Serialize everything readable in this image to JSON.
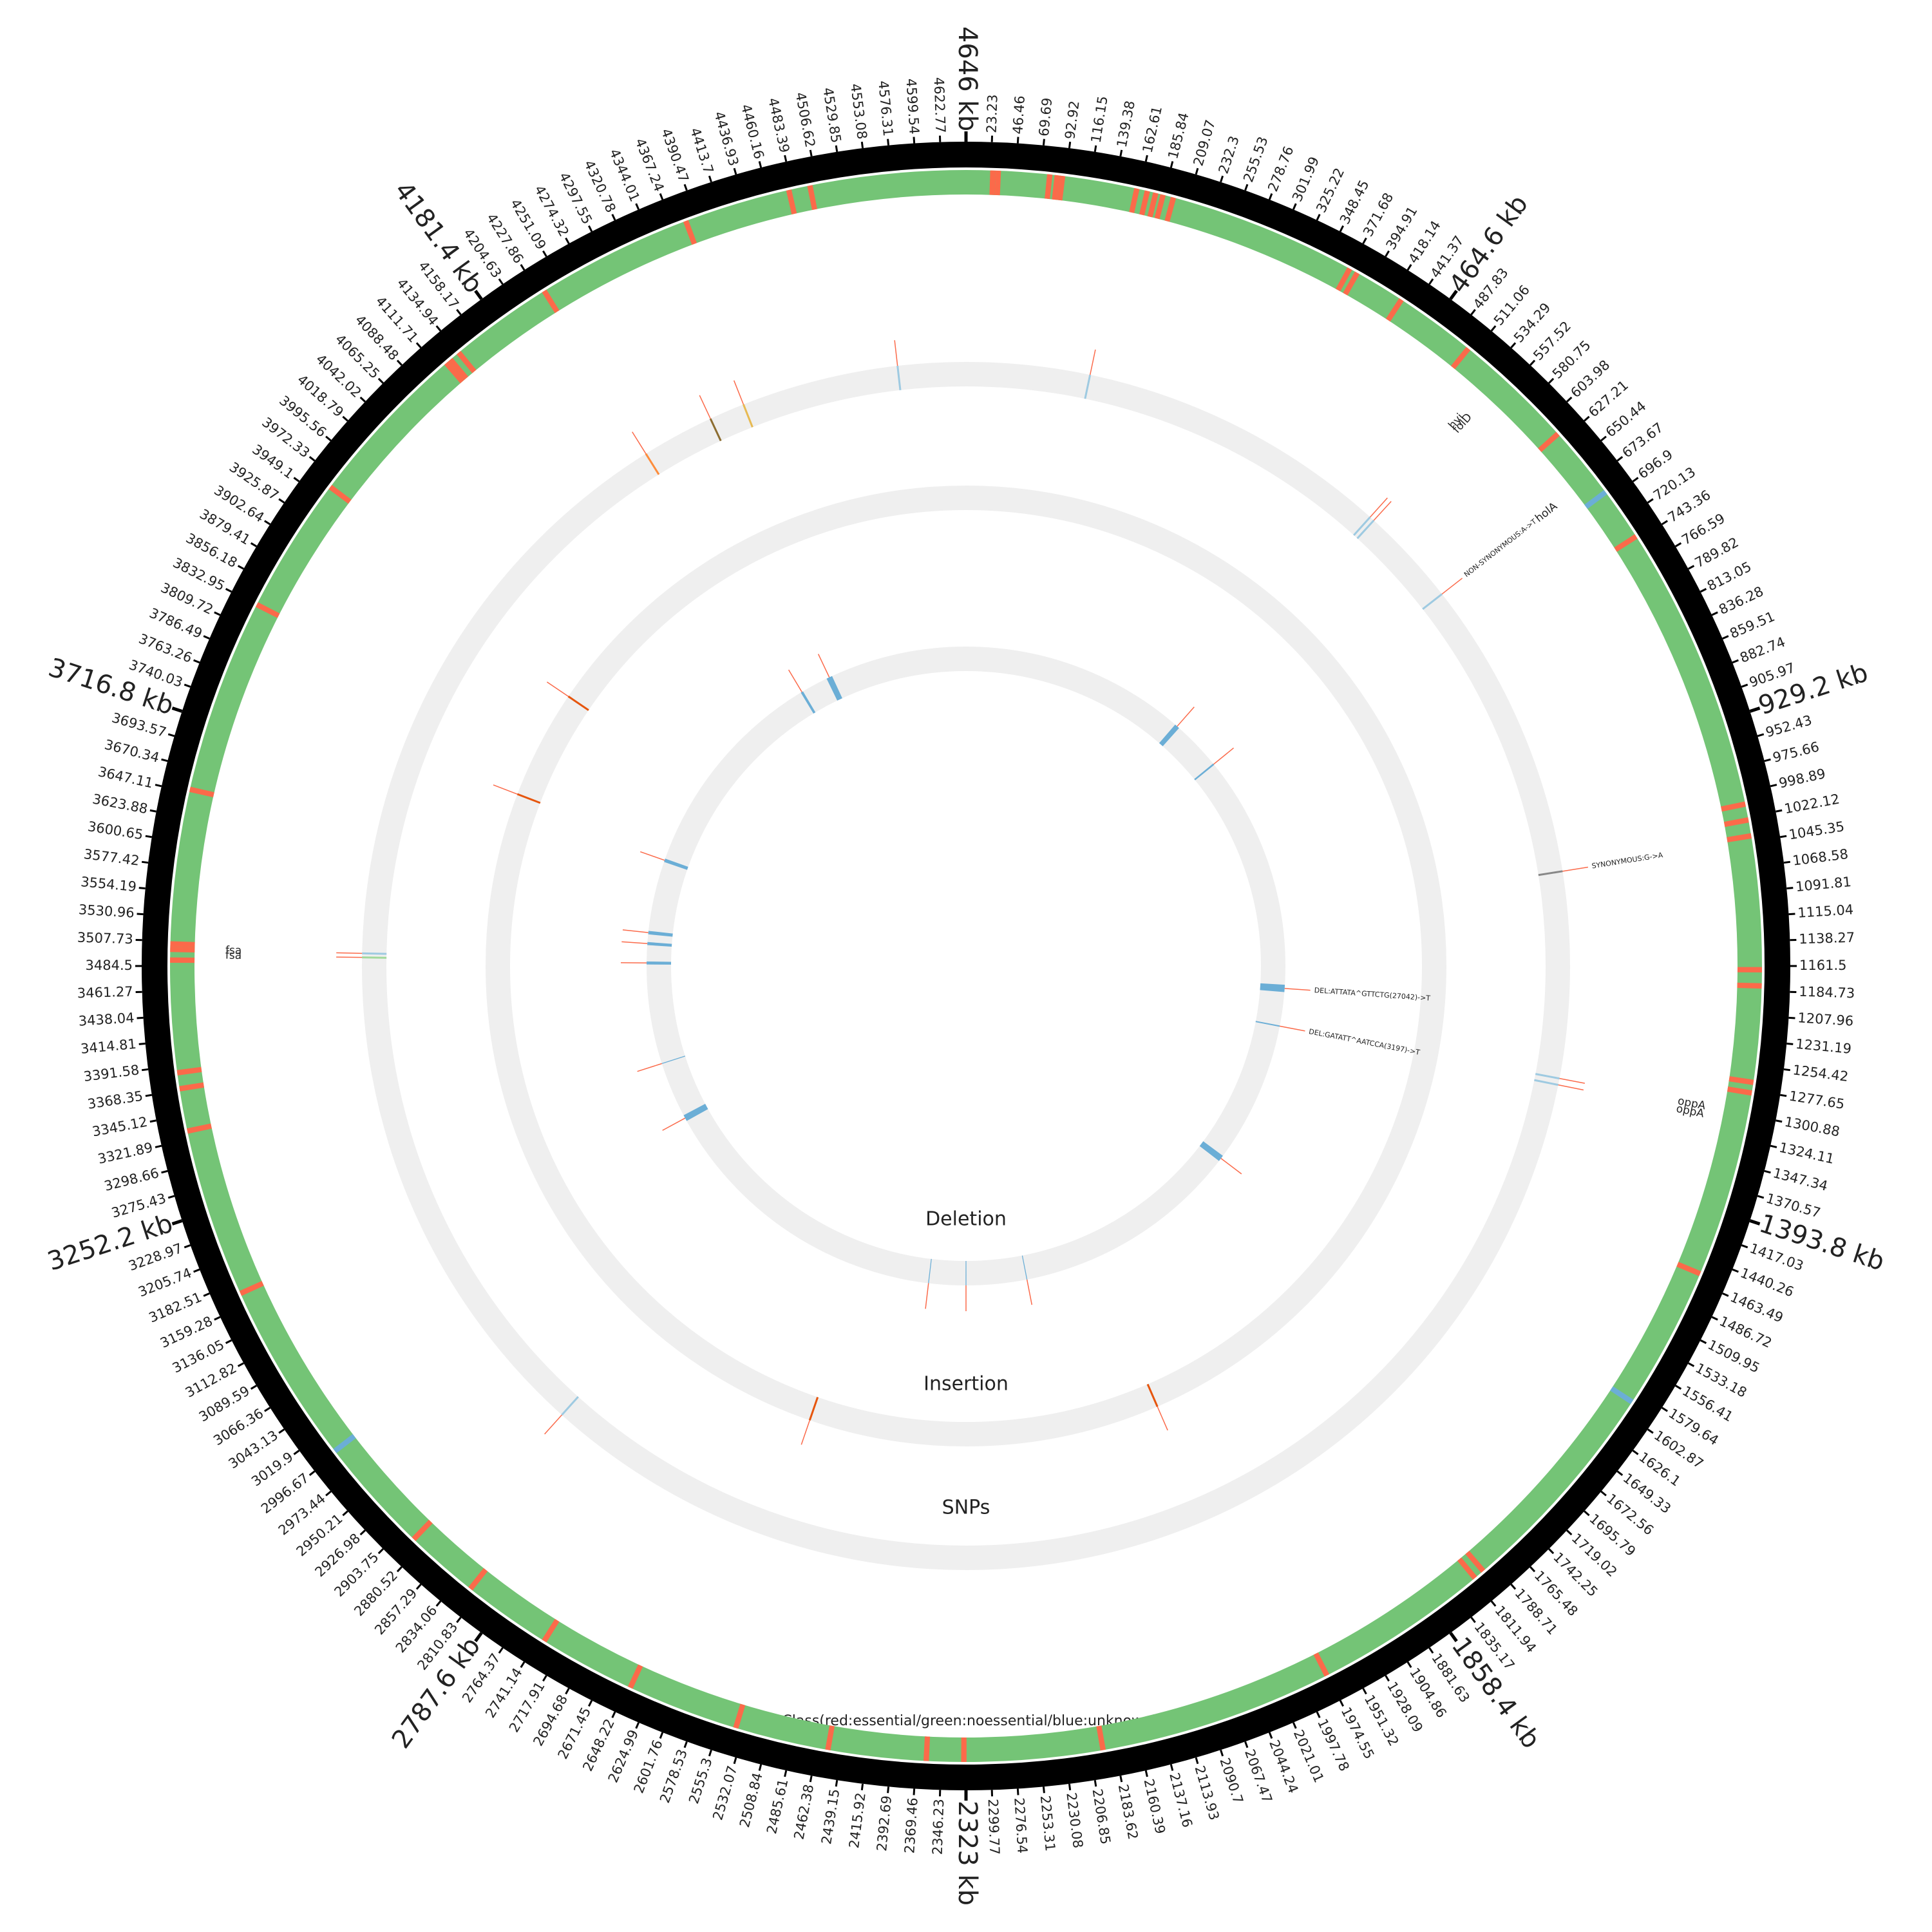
{
  "chart_data": {
    "type": "circular",
    "xlim": [
      0,
      4646
    ],
    "major_ticks": [
      {
        "value": 464.6,
        "label": "464.6 kb"
      },
      {
        "value": 929.2,
        "label": "929.2 kb"
      },
      {
        "value": 1393.8,
        "label": "1393.8 kb"
      },
      {
        "value": 1858.4,
        "label": "1858.4 kb"
      },
      {
        "value": 2323,
        "label": "2323 kb"
      },
      {
        "value": 2787.6,
        "label": "2787.6 kb"
      },
      {
        "value": 3252.2,
        "label": "3252.2 kb"
      },
      {
        "value": 3716.8,
        "label": "3716.8 kb"
      },
      {
        "value": 4181.4,
        "label": "4181.4 kb"
      },
      {
        "value": 4646,
        "label": "4646 kb"
      }
    ],
    "xticks": [
      23.23,
      46.46,
      69.69,
      92.92,
      116.15,
      139.38,
      162.61,
      185.84,
      209.07,
      232.3,
      255.53,
      278.76,
      301.99,
      325.22,
      348.45,
      371.68,
      394.91,
      418.14,
      441.37,
      487.83,
      511.06,
      534.29,
      557.52,
      580.75,
      603.98,
      627.21,
      650.44,
      673.67,
      696.9,
      720.13,
      743.36,
      766.59,
      789.82,
      813.05,
      836.28,
      859.51,
      882.74,
      905.97,
      952.43,
      975.66,
      998.89,
      1022.12,
      1045.35,
      1068.58,
      1091.81,
      1115.04,
      1138.27,
      1161.5,
      1184.73,
      1207.96,
      1231.19,
      1254.42,
      1277.65,
      1300.88,
      1324.11,
      1347.34,
      1370.57,
      1417.03,
      1440.26,
      1463.49,
      1486.72,
      1509.95,
      1533.18,
      1556.41,
      1579.64,
      1602.87,
      1626.1,
      1649.33,
      1672.56,
      1695.79,
      1719.02,
      1742.25,
      1765.48,
      1788.71,
      1811.94,
      1835.17,
      1881.63,
      1904.86,
      1928.09,
      1951.32,
      1974.55,
      1997.78,
      2021.01,
      2044.24,
      2067.47,
      2090.7,
      2113.93,
      2137.16,
      2160.39,
      2183.62,
      2206.85,
      2230.08,
      2253.31,
      2276.54,
      2299.77,
      2346.23,
      2369.46,
      2392.69,
      2415.92,
      2439.15,
      2462.38,
      2485.61,
      2508.84,
      2532.07,
      2555.3,
      2578.53,
      2601.76,
      2624.99,
      2648.22,
      2671.45,
      2694.68,
      2717.91,
      2741.14,
      2764.37,
      2810.83,
      2834.06,
      2857.29,
      2880.52,
      2903.75,
      2926.98,
      2950.21,
      2973.44,
      2996.67,
      3019.9,
      3043.13,
      3066.36,
      3089.59,
      3112.82,
      3136.05,
      3159.28,
      3182.51,
      3205.74,
      3228.97,
      3275.43,
      3298.66,
      3321.89,
      3345.12,
      3368.35,
      3391.58,
      3414.81,
      3438.04,
      3461.27,
      3484.5,
      3507.73,
      3530.96,
      3554.19,
      3577.42,
      3600.65,
      3623.88,
      3647.11,
      3670.34,
      3693.57,
      3740.03,
      3763.26,
      3786.49,
      3809.72,
      3832.95,
      3856.18,
      3879.41,
      3902.64,
      3925.87,
      3949.1,
      3972.33,
      3995.56,
      4018.79,
      4042.02,
      4065.25,
      4088.48,
      4111.71,
      4134.94,
      4158.17,
      4204.63,
      4227.86,
      4251.09,
      4274.32,
      4297.55,
      4320.78,
      4344.01,
      4367.24,
      4390.47,
      4413.7,
      4436.93,
      4460.16,
      4483.39,
      4506.62,
      4529.85,
      4553.08,
      4576.31,
      4599.54,
      4622.77
    ],
    "class_track": {
      "label": "Class(red:essential/green:noessential/blue:unknown)",
      "color": "#74c476",
      "essential": {
        "color": "#fb6a4a",
        "positions": [
          25,
          30,
          78,
          85,
          90,
          160,
          170,
          178,
          185,
          195,
          372,
          380,
          428,
          505,
          620,
          740,
          1010,
          1025,
          1040,
          1165,
          1180,
          1270,
          1280,
          1455,
          1800,
          1810,
          1975,
          2195,
          2325,
          2360,
          2452,
          2540,
          2645,
          2736,
          2820,
          2890,
          3171,
          3330,
          3370,
          3385,
          3490,
          3500,
          3505,
          3650,
          3833,
          3962,
          4120,
          4125,
          4135,
          4233,
          4380,
          4480,
          4500
        ]
      },
      "unknown": {
        "color": "#6baed6",
        "positions": [
          690,
          1590,
          3000
        ]
      }
    },
    "tracks": [
      {
        "name": "SNPs",
        "color": "#9ecae1",
        "label_color": "#fb6a4a",
        "features": [
          {
            "position": 4562
          },
          {
            "position": 153
          },
          {
            "position": 542,
            "gene": "hyi"
          },
          {
            "position": 548,
            "gene": "folD"
          },
          {
            "position": 671,
            "label": "NON-SYNONYMOUS:A->T",
            "gene": "holA"
          },
          {
            "position": 1045,
            "label": "SYNONYMOUS:G->A",
            "color": "#888888"
          },
          {
            "position": 1300,
            "gene": "oppA"
          },
          {
            "position": 1308,
            "gene": "oppA"
          },
          {
            "position": 2865
          },
          {
            "position": 3495,
            "gene": "fsa",
            "color": "#a1d99b"
          },
          {
            "position": 3500,
            "gene": "fsa"
          },
          {
            "position": 4233,
            "color": "#fd8d3c"
          },
          {
            "position": 4323,
            "color": "#8c6d31"
          },
          {
            "position": 4367,
            "color": "#e7ba52"
          }
        ]
      },
      {
        "name": "Insertion",
        "color": "#e6550d",
        "label_color": "#fb6a4a",
        "features": [
          {
            "position": 3925
          },
          {
            "position": 3755
          },
          {
            "position": 2568
          },
          {
            "position": 2020
          }
        ]
      },
      {
        "name": "Deletion",
        "color": "#6baed6",
        "label_color": "#fb6a4a",
        "features": [
          {
            "start": 4244,
            "end": 4250
          },
          {
            "start": 4312,
            "end": 4326
          },
          {
            "start": 528,
            "end": 540
          },
          {
            "start": 654,
            "end": 658
          },
          {
            "start": 1205,
            "end": 1222,
            "label": "DEL:ATTATA^GTTCTG(27042)->T"
          },
          {
            "start": 1300,
            "end": 1303,
            "label": "DEL:GATATT^AATCCA(3197)->T"
          },
          {
            "start": 1632,
            "end": 1647
          },
          {
            "start": 2180,
            "end": 2182
          },
          {
            "start": 2322,
            "end": 2324
          },
          {
            "start": 2409,
            "end": 2411
          },
          {
            "start": 3110,
            "end": 3125
          },
          {
            "start": 3254,
            "end": 3256
          },
          {
            "start": 3488,
            "end": 3495
          },
          {
            "start": 3533,
            "end": 3540
          },
          {
            "start": 3558,
            "end": 3566
          },
          {
            "start": 3730,
            "end": 3738
          }
        ]
      }
    ]
  }
}
